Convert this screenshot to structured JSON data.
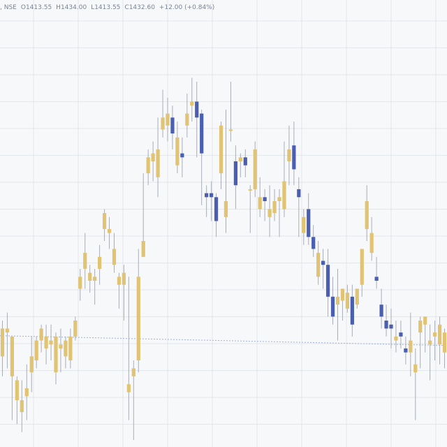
{
  "header": {
    "symbol": ", NSE",
    "open_label": "O",
    "open": "1413.55",
    "high_label": "H",
    "high": "1434.00",
    "low_label": "L",
    "low": "1413.55",
    "close_label": "C",
    "close": "1432.60",
    "change": "+12.00 (+0.84%)"
  },
  "colors": {
    "background": "#f7f8fa",
    "grid": "#e3e6ea",
    "up": "#e0c474",
    "down": "#4a5fb0",
    "wick": "#a8adb8",
    "ref_line": "#9fb0d6"
  },
  "chart_data": {
    "type": "candlestick",
    "title": "",
    "grid": true,
    "ref_line_level": 0.262,
    "ohlc": [
      [
        0.21,
        0.3,
        0.28,
        0.16
      ],
      [
        0.27,
        0.32,
        0.28,
        0.18
      ],
      [
        0.16,
        0.25,
        0.26,
        0.05
      ],
      [
        0.1,
        0.16,
        0.15,
        0.04
      ],
      [
        0.07,
        0.15,
        0.1,
        0.02
      ],
      [
        0.11,
        0.19,
        0.13,
        0.05
      ],
      [
        0.17,
        0.26,
        0.21,
        0.12
      ],
      [
        0.2,
        0.26,
        0.25,
        0.18
      ],
      [
        0.25,
        0.29,
        0.28,
        0.22
      ],
      [
        0.23,
        0.29,
        0.26,
        0.19
      ],
      [
        0.24,
        0.29,
        0.25,
        0.2
      ],
      [
        0.17,
        0.27,
        0.26,
        0.14
      ],
      [
        0.23,
        0.28,
        0.24,
        0.17
      ],
      [
        0.21,
        0.26,
        0.25,
        0.18
      ],
      [
        0.2,
        0.28,
        0.26,
        0.18
      ],
      [
        0.26,
        0.31,
        0.3,
        0.25
      ],
      [
        0.38,
        0.43,
        0.41,
        0.35
      ],
      [
        0.43,
        0.52,
        0.47,
        0.38
      ],
      [
        0.4,
        0.44,
        0.42,
        0.37
      ],
      [
        0.4,
        0.43,
        0.41,
        0.34
      ],
      [
        0.43,
        0.49,
        0.46,
        0.39
      ],
      [
        0.53,
        0.58,
        0.57,
        0.5
      ],
      [
        0.52,
        0.56,
        0.53,
        0.48
      ],
      [
        0.44,
        0.52,
        0.48,
        0.42
      ],
      [
        0.39,
        0.42,
        0.41,
        0.33
      ],
      [
        0.39,
        0.44,
        0.42,
        0.3
      ],
      [
        0.12,
        0.41,
        0.14,
        0.05
      ],
      [
        0.16,
        0.2,
        0.18,
        0.0
      ],
      [
        0.2,
        0.48,
        0.41,
        0.17
      ],
      [
        0.46,
        0.67,
        0.5,
        0.46
      ],
      [
        0.67,
        0.73,
        0.71,
        0.64
      ],
      [
        0.7,
        0.75,
        0.72,
        0.65
      ],
      [
        0.66,
        0.81,
        0.73,
        0.61
      ],
      [
        0.78,
        0.88,
        0.81,
        0.76
      ],
      [
        0.79,
        0.86,
        0.82,
        0.75
      ],
      [
        0.81,
        0.84,
        0.77,
        0.73
      ],
      [
        0.69,
        0.8,
        0.76,
        0.67
      ],
      [
        0.72,
        0.76,
        0.71,
        0.66
      ],
      [
        0.79,
        0.87,
        0.82,
        0.76
      ],
      [
        0.84,
        0.91,
        0.85,
        0.8
      ],
      [
        0.85,
        0.9,
        0.81,
        0.71
      ],
      [
        0.82,
        0.83,
        0.72,
        0.59
      ],
      [
        0.62,
        0.64,
        0.61,
        0.56
      ],
      [
        0.62,
        0.65,
        0.61,
        0.55
      ],
      [
        0.61,
        0.62,
        0.55,
        0.51
      ],
      [
        0.67,
        0.8,
        0.79,
        0.63
      ],
      [
        0.56,
        0.83,
        0.6,
        0.52
      ],
      [
        0.78,
        0.9,
        0.78,
        0.75
      ],
      [
        0.7,
        0.74,
        0.64,
        0.58
      ],
      [
        0.7,
        0.72,
        0.71,
        0.66
      ],
      [
        0.71,
        0.73,
        0.69,
        0.66
      ],
      [
        0.63,
        0.64,
        0.63,
        0.52
      ],
      [
        0.63,
        0.75,
        0.73,
        0.61
      ],
      [
        0.58,
        0.66,
        0.61,
        0.56
      ],
      [
        0.61,
        0.63,
        0.6,
        0.55
      ],
      [
        0.56,
        0.64,
        0.58,
        0.51
      ],
      [
        0.57,
        0.63,
        0.6,
        0.55
      ],
      [
        0.6,
        0.63,
        0.61,
        0.51
      ],
      [
        0.58,
        0.75,
        0.65,
        0.56
      ],
      [
        0.7,
        0.79,
        0.73,
        0.64
      ],
      [
        0.74,
        0.8,
        0.68,
        0.64
      ],
      [
        0.63,
        0.66,
        0.61,
        0.51
      ],
      [
        0.52,
        0.58,
        0.56,
        0.49
      ],
      [
        0.58,
        0.62,
        0.51,
        0.49
      ],
      [
        0.51,
        0.54,
        0.48,
        0.46
      ],
      [
        0.41,
        0.5,
        0.47,
        0.39
      ],
      [
        0.45,
        0.48,
        0.44,
        0.38
      ],
      [
        0.44,
        0.48,
        0.36,
        0.31
      ],
      [
        0.36,
        0.41,
        0.31,
        0.29
      ],
      [
        0.34,
        0.43,
        0.36,
        0.25
      ],
      [
        0.35,
        0.37,
        0.38,
        0.3
      ],
      [
        0.33,
        0.39,
        0.37,
        0.32
      ],
      [
        0.36,
        0.39,
        0.29,
        0.26
      ],
      [
        0.34,
        0.38,
        0.38,
        0.33
      ],
      [
        0.39,
        0.46,
        0.48,
        0.36
      ],
      [
        0.53,
        0.64,
        0.6,
        0.5
      ],
      [
        0.47,
        0.56,
        0.52,
        0.45
      ],
      [
        0.41,
        0.46,
        0.4,
        0.38
      ],
      [
        0.34,
        0.38,
        0.31,
        0.28
      ],
      [
        0.3,
        0.34,
        0.28,
        0.26
      ],
      [
        0.29,
        0.33,
        0.28,
        0.23
      ],
      [
        0.25,
        0.3,
        0.26,
        0.22
      ],
      [
        0.27,
        0.3,
        0.26,
        0.23
      ],
      [
        0.23,
        0.26,
        0.22,
        0.19
      ],
      [
        0.22,
        0.32,
        0.25,
        0.16
      ],
      [
        0.17,
        0.23,
        0.19,
        0.05
      ],
      [
        0.27,
        0.31,
        0.3,
        0.18
      ],
      [
        0.29,
        0.31,
        0.31,
        0.22
      ],
      [
        0.24,
        0.29,
        0.25,
        0.15
      ],
      [
        0.26,
        0.3,
        0.27,
        0.2
      ],
      [
        0.24,
        0.31,
        0.29,
        0.19
      ],
      [
        0.22,
        0.28,
        0.27,
        0.18
      ]
    ]
  }
}
